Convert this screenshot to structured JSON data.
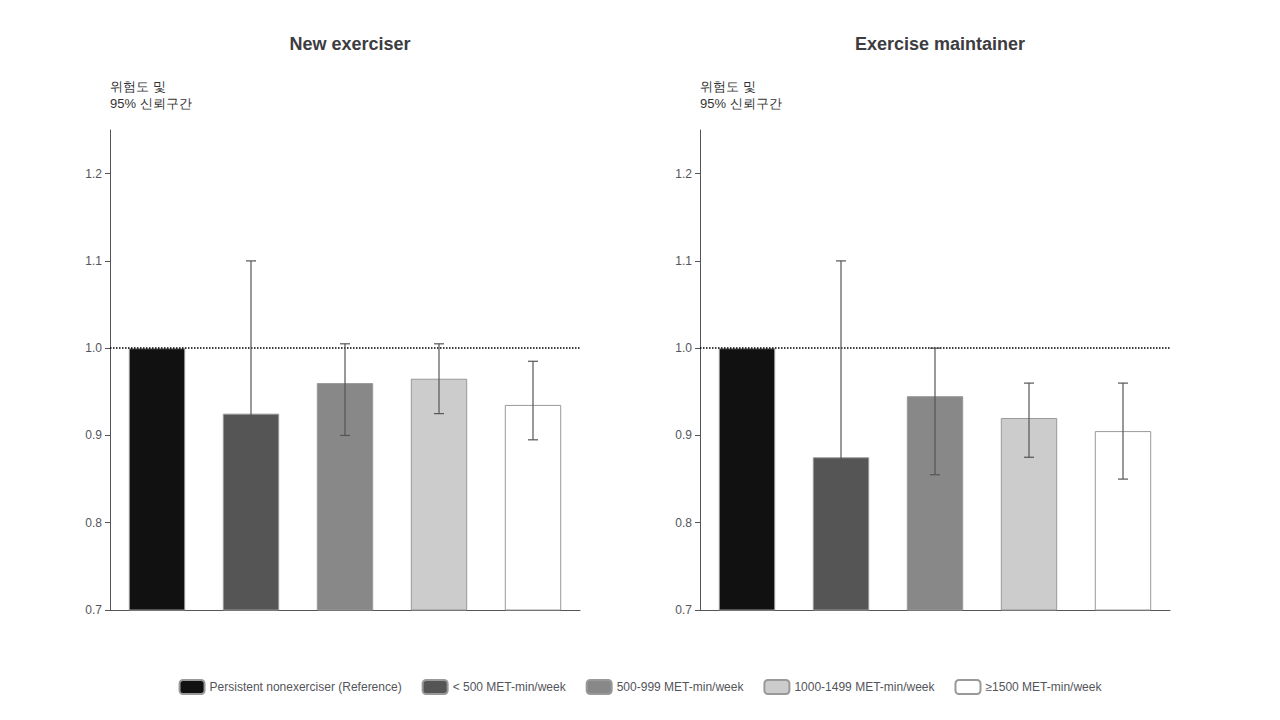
{
  "chart_data": [
    {
      "type": "bar",
      "title": "New exerciser",
      "ylabel": "위험도 및\n95% 신뢰구간",
      "ylim": [
        0.7,
        1.25
      ],
      "yticks": [
        0.7,
        0.8,
        0.9,
        {
          "value": 1.0,
          "label": "1.0"
        },
        1.1,
        1.2
      ],
      "grid": false,
      "legend": "bottom",
      "tick_labels": "y",
      "reference_line": 1.0,
      "series": [
        {
          "name": "Persistent nonexerciser (Reference)",
          "color": "#111111",
          "values": [
            1.0
          ],
          "errors_low": [
            0.0
          ],
          "errors_high": [
            0.0
          ]
        },
        {
          "name": "< 500 MET-min/week",
          "color": "#555555",
          "values": [
            0.925
          ],
          "errors_low": [
            0.08
          ],
          "errors_high": [
            0.175
          ]
        },
        {
          "name": "500-999 MET-min/week",
          "color": "#888888",
          "values": [
            0.96
          ],
          "errors_low": [
            0.06
          ],
          "errors_high": [
            0.045
          ]
        },
        {
          "name": "1000-1499 MET-min/week",
          "color": "#cccccc",
          "values": [
            0.965
          ],
          "errors_low": [
            0.04
          ],
          "errors_high": [
            0.04
          ]
        },
        {
          "name": "≥1500 MET-min/week",
          "color": "#ffffff",
          "values": [
            0.935
          ],
          "errors_low": [
            0.04
          ],
          "errors_high": [
            0.05
          ]
        }
      ]
    },
    {
      "type": "bar",
      "title": "Exercise maintainer",
      "ylabel": "위험도 및\n95% 신뢰구간",
      "ylim": [
        0.7,
        1.25
      ],
      "yticks": [
        0.7,
        0.8,
        0.9,
        {
          "value": 1.0,
          "label": "1.0"
        },
        1.1,
        1.2
      ],
      "grid": false,
      "legend": "bottom",
      "tick_labels": "y",
      "reference_line": 1.0,
      "series": [
        {
          "name": "Persistent nonexerciser (Reference)",
          "color": "#111111",
          "values": [
            1.0
          ],
          "errors_low": [
            0.0
          ],
          "errors_high": [
            0.0
          ]
        },
        {
          "name": "< 500 MET-min/week",
          "color": "#555555",
          "values": [
            0.875
          ],
          "errors_low": [
            0.125
          ],
          "errors_high": [
            0.225
          ]
        },
        {
          "name": "500-999 MET-min/week",
          "color": "#888888",
          "values": [
            0.945
          ],
          "errors_low": [
            0.09
          ],
          "errors_high": [
            0.055
          ]
        },
        {
          "name": "1000-1499 MET-min/week",
          "color": "#cccccc",
          "values": [
            0.92
          ],
          "errors_low": [
            0.045
          ],
          "errors_high": [
            0.04
          ]
        },
        {
          "name": "≥1500 MET-min/week",
          "color": "#ffffff",
          "values": [
            0.905
          ],
          "errors_low": [
            0.055
          ],
          "errors_high": [
            0.055
          ]
        }
      ]
    }
  ]
}
